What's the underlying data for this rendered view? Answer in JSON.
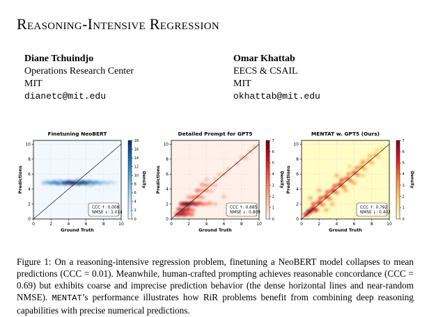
{
  "paper": {
    "title": "Reasoning-Intensive Regression",
    "authors": [
      {
        "name": "Diane Tchuindjo",
        "affiliation": "Operations Research Center",
        "institution": "MIT",
        "email": "dianetc@mit.edu"
      },
      {
        "name": "Omar Khattab",
        "affiliation": "EECS & CSAIL",
        "institution": "MIT",
        "email": "okhattab@mit.edu"
      }
    ],
    "caption": {
      "label": "Figure 1:",
      "text_1": " On a reasoning-intensive regression problem, finetuning a NeoBERT model collapses to mean predictions (CCC = 0.01). Meanwhile, human-crafted prompting achieves reasonable concordance (CCC = 0.69) but exhibits coarse and imprecise prediction behavior (the dense horizontal lines and near-random NMSE). ",
      "mentat": "MENTAT",
      "text_2": "’s performance illustrates how RiR problems benefit from combining deep reasoning capabilities with precise numerical predictions."
    }
  },
  "chart_data": [
    {
      "type": "heatmap",
      "title": "Finetuning NeoBERT",
      "xlabel": "Ground Truth",
      "ylabel": "Predictions",
      "xlim": [
        0,
        10
      ],
      "ylim": [
        0,
        10.5
      ],
      "xticks": [
        0,
        2,
        4,
        6,
        8,
        10
      ],
      "yticks": [
        0,
        2,
        4,
        6,
        8,
        10
      ],
      "colorbar": {
        "label": "Density",
        "ticks": [
          0,
          2,
          4,
          6,
          8,
          10,
          12,
          14,
          16,
          18
        ],
        "range": [
          0,
          18
        ],
        "colormap": "blues"
      },
      "diagonal": true,
      "annotation": [
        "CCC ↑: 0.008",
        "NMSE ↓: 1.014"
      ],
      "points": [
        [
          1.2,
          4.8,
          5
        ],
        [
          1.6,
          4.9,
          7
        ],
        [
          2.0,
          4.8,
          9
        ],
        [
          2.4,
          4.9,
          11
        ],
        [
          2.8,
          4.8,
          13
        ],
        [
          3.2,
          4.9,
          14
        ],
        [
          3.6,
          4.8,
          15
        ],
        [
          4.0,
          4.9,
          17
        ],
        [
          4.4,
          4.8,
          18
        ],
        [
          4.8,
          4.9,
          18
        ],
        [
          5.2,
          4.8,
          17
        ],
        [
          5.6,
          4.9,
          16
        ],
        [
          6.0,
          4.8,
          15
        ],
        [
          6.4,
          4.9,
          13
        ],
        [
          6.8,
          4.8,
          11
        ],
        [
          7.2,
          4.9,
          9
        ],
        [
          7.6,
          4.8,
          7
        ],
        [
          8.0,
          4.9,
          5
        ],
        [
          8.4,
          4.8,
          4
        ],
        [
          8.8,
          4.9,
          3
        ],
        [
          9.2,
          4.8,
          2
        ],
        [
          3.0,
          5.1,
          4
        ],
        [
          5.0,
          5.2,
          5
        ],
        [
          6.5,
          4.5,
          3
        ]
      ]
    },
    {
      "type": "heatmap",
      "title": "Detailed Prompt for GPT5",
      "xlabel": "Ground Truth",
      "ylabel": "Predictions",
      "xlim": [
        0,
        10
      ],
      "ylim": [
        0,
        10.5
      ],
      "xticks": [
        0,
        2,
        4,
        6,
        8,
        10
      ],
      "yticks": [
        0,
        2,
        4,
        6,
        8,
        10
      ],
      "colorbar": {
        "label": "Density",
        "ticks": [
          0,
          1,
          2,
          3,
          4,
          5,
          6,
          7
        ],
        "range": [
          0,
          7
        ],
        "colormap": "reds"
      },
      "diagonal": true,
      "annotation": [
        "CCC ↑: 0.685",
        "NMSE ↓: 0.809"
      ],
      "points": [
        [
          0.7,
          0.6,
          5
        ],
        [
          1.1,
          0.7,
          6
        ],
        [
          1.5,
          0.6,
          5
        ],
        [
          1.9,
          0.7,
          4
        ],
        [
          2.3,
          0.6,
          3
        ],
        [
          0.9,
          1.3,
          4
        ],
        [
          1.4,
          1.2,
          6
        ],
        [
          1.9,
          1.3,
          5
        ],
        [
          2.4,
          1.2,
          3
        ],
        [
          1.2,
          2.0,
          5
        ],
        [
          1.6,
          2.0,
          7
        ],
        [
          2.0,
          2.0,
          7
        ],
        [
          2.4,
          2.1,
          6
        ],
        [
          2.8,
          2.0,
          5
        ],
        [
          3.2,
          2.1,
          4
        ],
        [
          3.6,
          2.0,
          3
        ],
        [
          4.0,
          2.0,
          2
        ],
        [
          4.4,
          2.1,
          2
        ],
        [
          2.0,
          2.9,
          2
        ],
        [
          2.5,
          2.9,
          3
        ],
        [
          3.0,
          3.0,
          3
        ],
        [
          3.5,
          2.9,
          2
        ],
        [
          3.0,
          3.8,
          3
        ],
        [
          3.5,
          3.8,
          2
        ],
        [
          4.0,
          3.8,
          2
        ],
        [
          4.5,
          3.7,
          1
        ],
        [
          3.5,
          4.6,
          2
        ],
        [
          4.0,
          4.5,
          2
        ],
        [
          4.5,
          4.6,
          1
        ],
        [
          5.0,
          4.5,
          1
        ],
        [
          4.0,
          5.3,
          1
        ],
        [
          5.0,
          5.3,
          1
        ],
        [
          5.5,
          5.9,
          1
        ],
        [
          6.0,
          6.0,
          1
        ],
        [
          6.5,
          6.7,
          1
        ],
        [
          7.5,
          7.4,
          1
        ],
        [
          8.0,
          8.2,
          1
        ],
        [
          8.5,
          8.2,
          1
        ],
        [
          9.0,
          9.0,
          1
        ],
        [
          9.5,
          9.6,
          1
        ],
        [
          5.0,
          2.0,
          1
        ],
        [
          6.0,
          3.0,
          1
        ]
      ]
    },
    {
      "type": "heatmap",
      "title": "MENTAT w. GPT5 (Ours)",
      "xlabel": "Ground Truth",
      "ylabel": "Predictions",
      "xlim": [
        0,
        10
      ],
      "ylim": [
        0,
        10.5
      ],
      "xticks": [
        0,
        2,
        4,
        6,
        8,
        10
      ],
      "yticks": [
        0,
        2,
        4,
        6,
        8,
        10
      ],
      "colorbar": {
        "label": "Density",
        "ticks": [
          0,
          1,
          2,
          3,
          4,
          5,
          6,
          7
        ],
        "range": [
          0,
          7
        ],
        "colormap": "ylorrd"
      },
      "diagonal": true,
      "annotation": [
        "CCC ↑: 0.792",
        "NMSE ↓: 0.402"
      ],
      "points": [
        [
          0.5,
          0.6,
          5
        ],
        [
          0.9,
          1.0,
          7
        ],
        [
          1.3,
          1.4,
          6
        ],
        [
          1.6,
          1.2,
          5
        ],
        [
          1.4,
          2.0,
          4
        ],
        [
          2.0,
          2.2,
          5
        ],
        [
          2.4,
          1.9,
          3
        ],
        [
          2.2,
          2.8,
          4
        ],
        [
          2.8,
          3.0,
          5
        ],
        [
          3.2,
          2.7,
          3
        ],
        [
          3.0,
          3.6,
          4
        ],
        [
          3.6,
          3.8,
          5
        ],
        [
          4.0,
          3.5,
          3
        ],
        [
          3.8,
          4.4,
          4
        ],
        [
          4.4,
          4.6,
          5
        ],
        [
          4.8,
          4.3,
          3
        ],
        [
          4.6,
          5.2,
          4
        ],
        [
          5.2,
          5.4,
          4
        ],
        [
          5.6,
          5.1,
          3
        ],
        [
          5.4,
          6.0,
          3
        ],
        [
          6.0,
          6.2,
          4
        ],
        [
          6.4,
          5.9,
          3
        ],
        [
          6.3,
          6.8,
          3
        ],
        [
          6.8,
          7.0,
          3
        ],
        [
          7.2,
          6.7,
          2
        ],
        [
          7.0,
          7.6,
          3
        ],
        [
          7.6,
          7.8,
          2
        ],
        [
          8.0,
          7.5,
          2
        ],
        [
          7.8,
          8.4,
          2
        ],
        [
          8.4,
          8.6,
          2
        ],
        [
          8.8,
          8.3,
          1
        ],
        [
          8.6,
          9.2,
          1
        ],
        [
          9.2,
          9.4,
          1
        ],
        [
          2.0,
          3.8,
          2
        ],
        [
          3.5,
          2.0,
          2
        ],
        [
          5.0,
          3.8,
          2
        ],
        [
          4.0,
          5.8,
          2
        ],
        [
          6.0,
          4.8,
          2
        ],
        [
          5.5,
          7.0,
          1
        ],
        [
          7.0,
          5.8,
          1
        ],
        [
          1.0,
          2.8,
          2
        ],
        [
          2.8,
          1.2,
          2
        ]
      ]
    }
  ]
}
